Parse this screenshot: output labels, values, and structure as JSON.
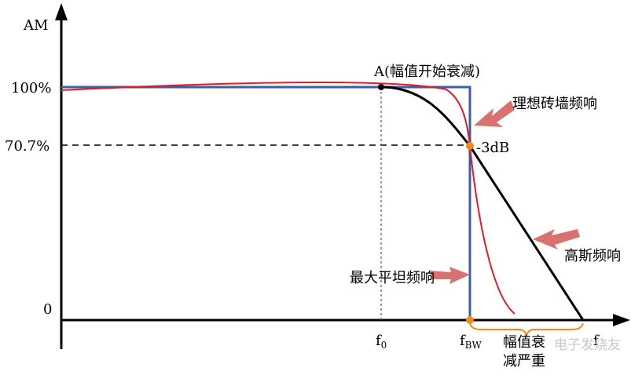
{
  "axis": {
    "y_label": "AM",
    "x_label": "f",
    "y_100": "100%",
    "y_707": "70.7%",
    "y_0": "0"
  },
  "markers": {
    "f0": {
      "base": "f",
      "sub": "0"
    },
    "fbw": {
      "base": "f",
      "sub": "BW"
    }
  },
  "annotations": {
    "point_a": "A(幅值开始衰减)",
    "brick_wall": "理想砖墙频响",
    "minus_3db": "-3dB",
    "gaussian": "高斯频响",
    "max_flat": "最大平坦频响",
    "severe_attenuation_1": "幅值衰",
    "severe_attenuation_2": "减严重"
  },
  "watermark": "电子发烧友"
}
